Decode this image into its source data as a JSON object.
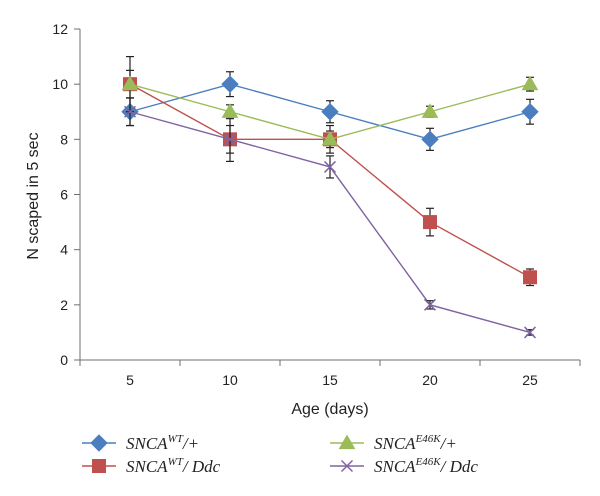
{
  "chart_data": {
    "type": "line",
    "title": "",
    "xlabel": "Age (days)",
    "ylabel": "N scaped in 5 sec",
    "categories": [
      "5",
      "10",
      "15",
      "20",
      "25"
    ],
    "x": [
      5,
      10,
      15,
      20,
      25
    ],
    "ylim": [
      0,
      12
    ],
    "yticks": [
      "0",
      "2",
      "4",
      "6",
      "8",
      "10",
      "12"
    ],
    "grid": false,
    "legend_position": "bottom",
    "series": [
      {
        "name": "SNCA^WT/+",
        "name_parts": {
          "base": "SNCA",
          "sup": "WT",
          "rest": "/+"
        },
        "marker": "diamond",
        "color": "#4a7ebf",
        "values": [
          9,
          10,
          9,
          8,
          9
        ],
        "errors": [
          0.5,
          0.45,
          0.4,
          0.4,
          0.45
        ]
      },
      {
        "name": "SNCA^WT/ Ddc",
        "name_parts": {
          "base": "SNCA",
          "sup": "WT",
          "rest": "/ Ddc"
        },
        "marker": "square",
        "color": "#c0504d",
        "values": [
          10,
          8,
          8,
          5,
          3
        ],
        "errors": [
          1.0,
          0.8,
          0.5,
          0.5,
          0.3
        ]
      },
      {
        "name": "SNCA^E46K/+",
        "name_parts": {
          "base": "SNCA",
          "sup": "E46K",
          "rest": "/+"
        },
        "marker": "triangle",
        "color": "#9bbb59",
        "values": [
          10,
          9,
          8,
          9,
          10
        ],
        "errors": [
          0.5,
          0.25,
          0.3,
          0.2,
          0.25
        ]
      },
      {
        "name": "SNCA^E46K/ Ddc",
        "name_parts": {
          "base": "SNCA",
          "sup": "E46K",
          "rest": "/ Ddc"
        },
        "marker": "x",
        "color": "#8064a2",
        "values": [
          9,
          8,
          7,
          2,
          1
        ],
        "errors": [
          0.5,
          0.5,
          0.4,
          0.15,
          0.1
        ]
      }
    ]
  }
}
